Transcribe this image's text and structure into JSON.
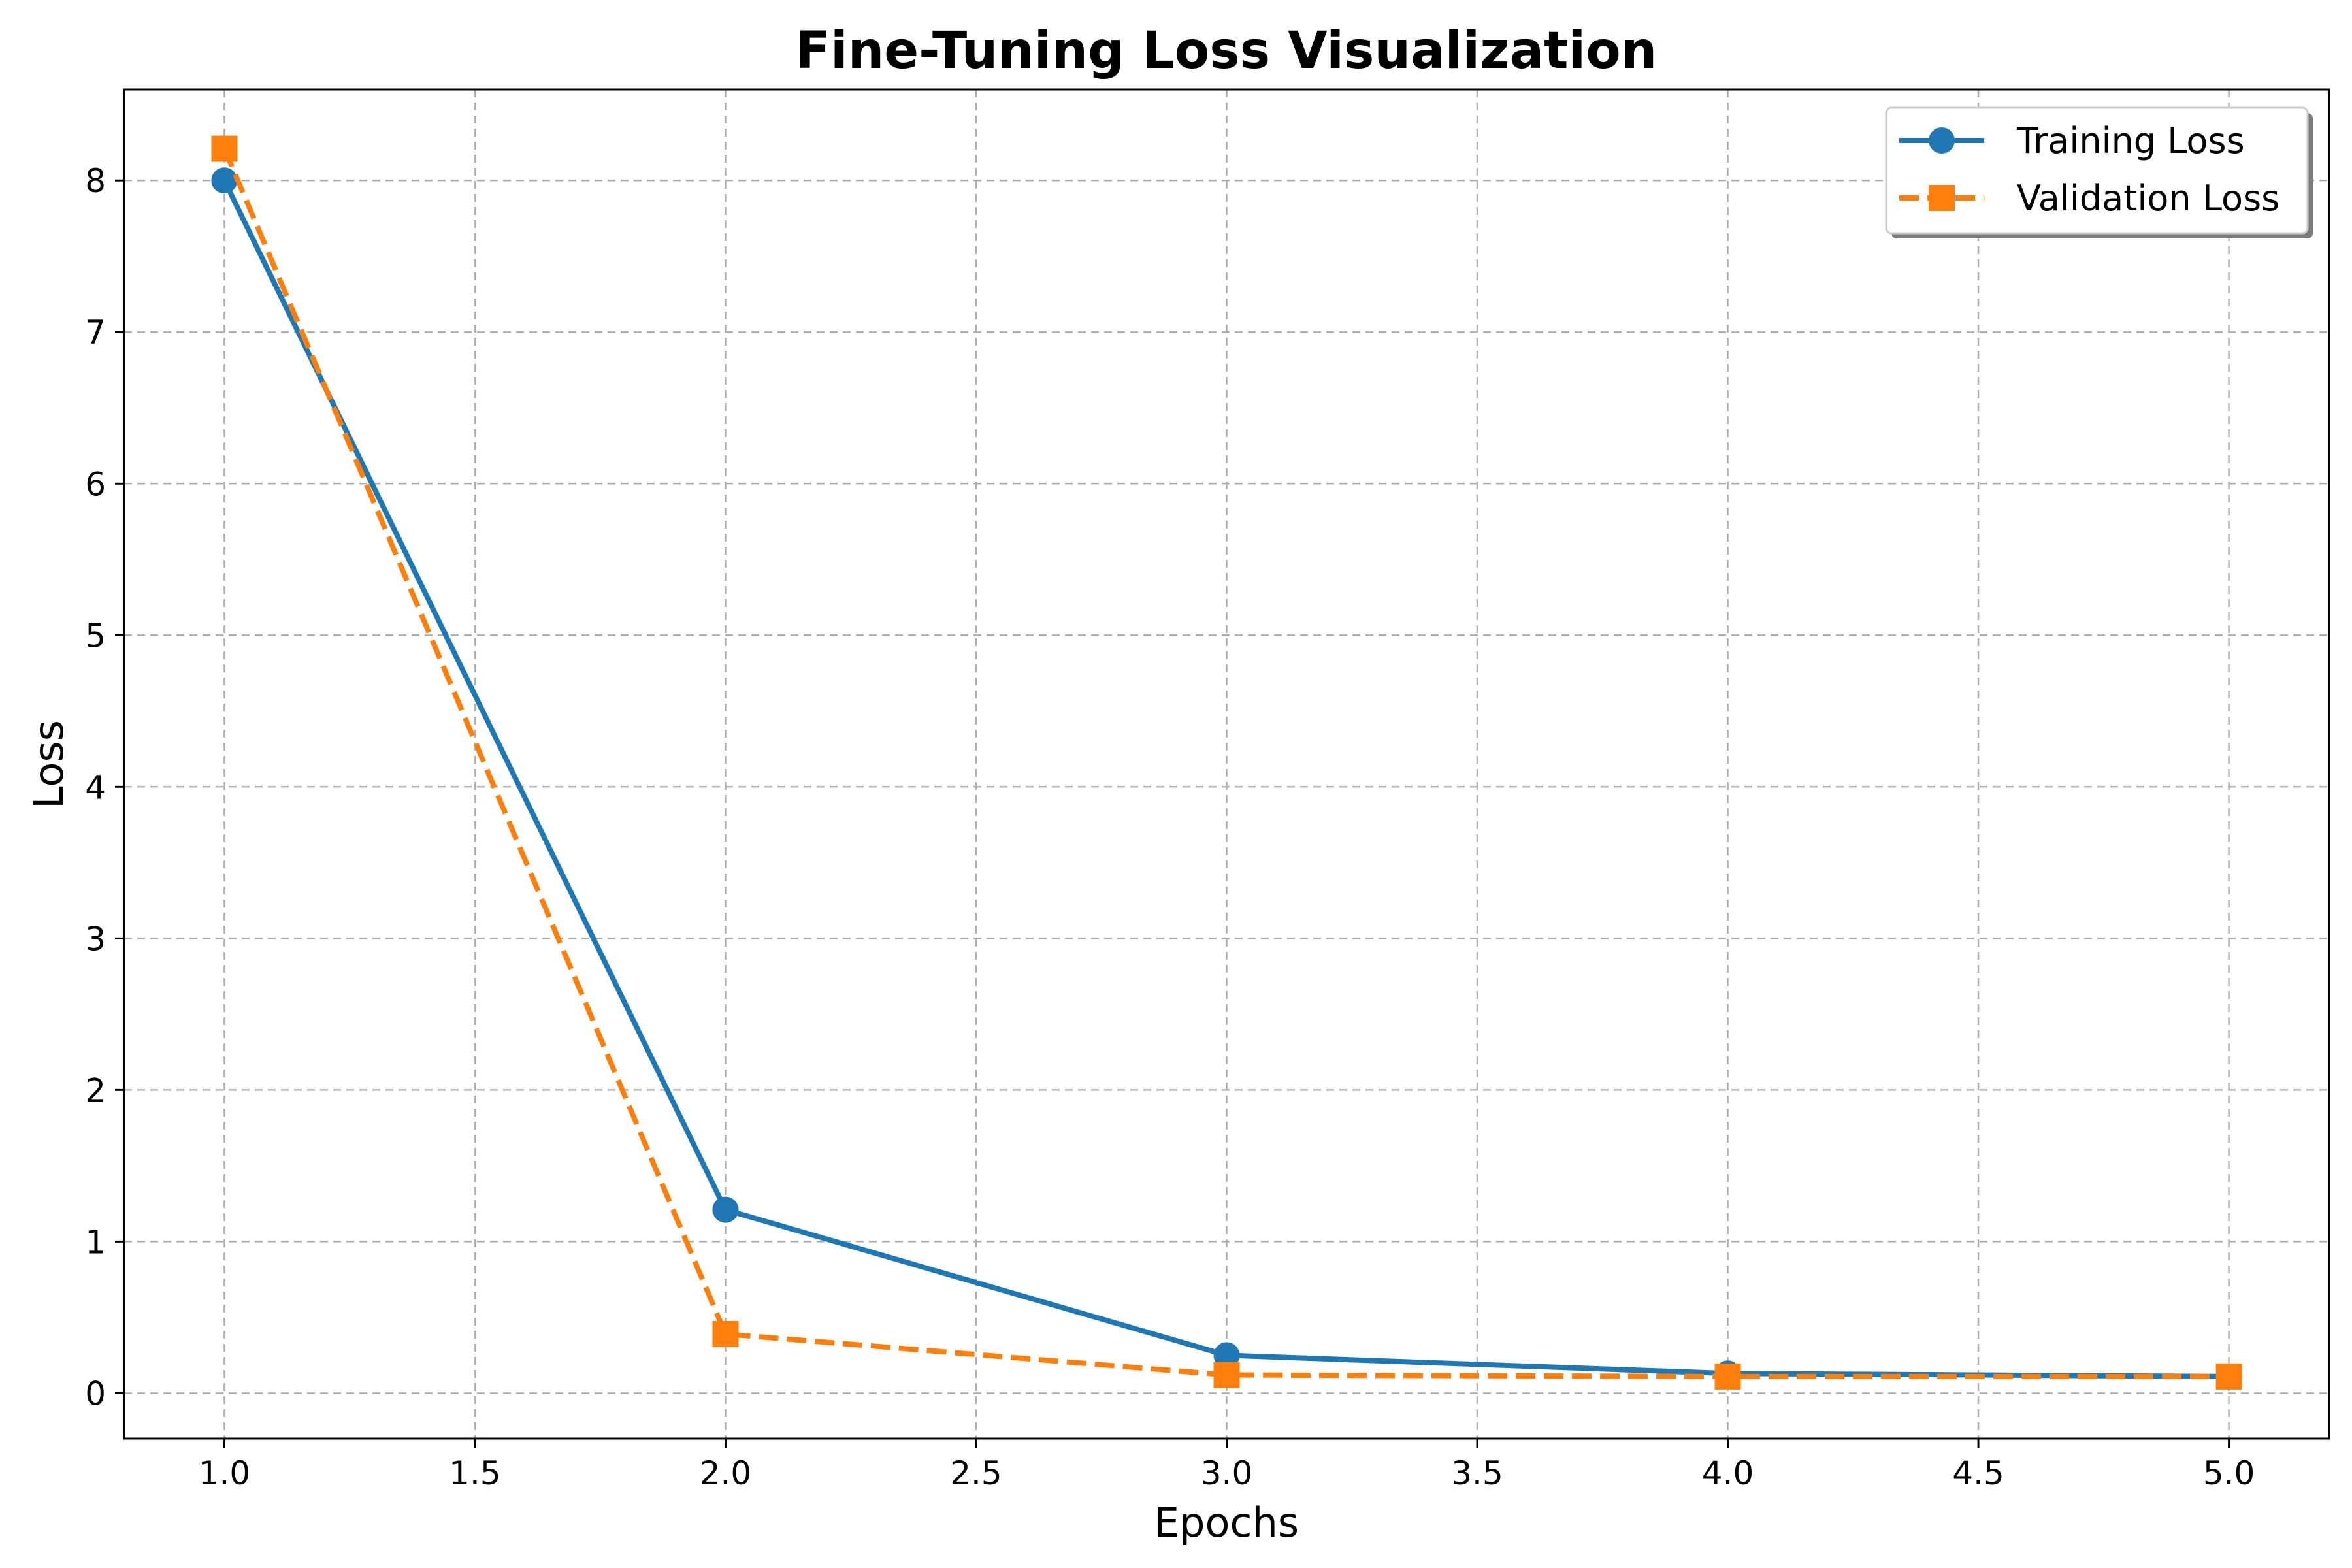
{
  "chart_data": {
    "type": "line",
    "title": "Fine-Tuning Loss Visualization",
    "xlabel": "Epochs",
    "ylabel": "Loss",
    "x": [
      1.0,
      2.0,
      3.0,
      4.0,
      5.0
    ],
    "xlim": [
      0.8,
      5.2
    ],
    "ylim": [
      -0.3,
      8.6
    ],
    "xticks": [
      1.0,
      1.5,
      2.0,
      2.5,
      3.0,
      3.5,
      4.0,
      4.5,
      5.0
    ],
    "xtick_labels": [
      "1.0",
      "1.5",
      "2.0",
      "2.5",
      "3.0",
      "3.5",
      "4.0",
      "4.5",
      "5.0"
    ],
    "yticks": [
      0,
      1,
      2,
      3,
      4,
      5,
      6,
      7,
      8
    ],
    "ytick_labels": [
      "0",
      "1",
      "2",
      "3",
      "4",
      "5",
      "6",
      "7",
      "8"
    ],
    "grid": true,
    "legend_position": "top-right",
    "series": [
      {
        "name": "Training Loss",
        "values": [
          8.0,
          1.21,
          0.25,
          0.13,
          0.11
        ],
        "color": "#1f77b4",
        "marker": "circle",
        "line_style": "solid"
      },
      {
        "name": "Validation Loss",
        "values": [
          8.21,
          0.39,
          0.12,
          0.11,
          0.11
        ],
        "color": "#ff7f0e",
        "marker": "square",
        "line_style": "dashed"
      }
    ]
  }
}
